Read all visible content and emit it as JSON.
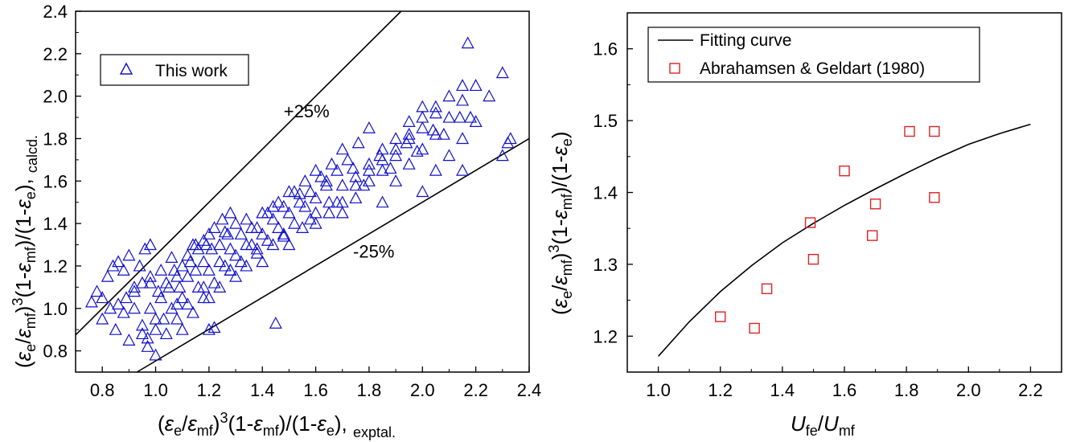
{
  "chart_data": [
    {
      "type": "scatter",
      "xlim": [
        0.7,
        2.4
      ],
      "ylim": [
        0.7,
        2.4
      ],
      "xticks": [
        "0.8",
        "1.0",
        "1.2",
        "1.4",
        "1.6",
        "1.8",
        "2.0",
        "2.2",
        "2.4"
      ],
      "yticks": [
        "0.8",
        "1.0",
        "1.2",
        "1.4",
        "1.6",
        "1.8",
        "2.0",
        "2.2",
        "2.4"
      ],
      "xlabel": {
        "p1": "(",
        "e": "ε",
        "sub_e": "e",
        "slash": "/",
        "mf": "ε",
        "sub_mf": "mf",
        "p2": ")",
        "sup3": "3",
        "rest": "(1-",
        "e2": "ε",
        "sub_mf2": "mf",
        "mid": ")/(1-",
        "e3": "ε",
        "sub_e3": "e",
        "tail": "), ",
        "sub_tail": "exptal."
      },
      "ylabel": {
        "p1": "(",
        "e": "ε",
        "sub_e": "e",
        "slash": "/",
        "mf": "ε",
        "sub_mf": "mf",
        "p2": ")",
        "sup3": "3",
        "rest": "(1-",
        "e2": "ε",
        "sub_mf2": "mf",
        "mid": ")/(1-",
        "e3": "ε",
        "sub_e3": "e",
        "tail": "), ",
        "sub_tail": "calcd."
      },
      "legend": {
        "label": "This work",
        "placement": "top-left"
      },
      "annotations": [
        {
          "text": "+25%",
          "x": 1.48,
          "y": 1.9
        },
        {
          "text": "-25%",
          "x": 1.74,
          "y": 1.24
        }
      ],
      "lines": [
        {
          "name": "+25%",
          "x": [
            0.7,
            1.92
          ],
          "y": [
            0.875,
            2.4
          ]
        },
        {
          "name": "-25%",
          "x": [
            0.93,
            2.4
          ],
          "y": [
            0.7,
            1.8
          ]
        }
      ],
      "series": [
        {
          "marker": "open-triangle",
          "color": "#1010cc",
          "x": [
            0.76,
            0.78,
            0.8,
            0.82,
            0.84,
            0.86,
            0.88,
            0.9,
            0.92,
            0.94,
            0.96,
            0.98,
            0.8,
            0.83,
            0.86,
            0.89,
            0.92,
            0.95,
            0.98,
            0.85,
            0.9,
            0.95,
            0.88,
            0.92,
            0.97,
            1.0,
            1.02,
            1.05,
            1.08,
            1.1,
            1.12,
            1.15,
            1.18,
            1.2,
            0.95,
            0.98,
            1.01,
            1.04,
            1.07,
            1.1,
            1.13,
            1.16,
            1.19,
            1.22,
            1.25,
            1.28,
            0.97,
            1.0,
            1.03,
            1.06,
            1.09,
            1.12,
            1.15,
            1.18,
            1.21,
            1.24,
            1.27,
            1.3,
            1.0,
            1.04,
            1.08,
            1.12,
            1.16,
            1.2,
            1.24,
            1.28,
            1.32,
            1.36,
            1.4,
            1.1,
            1.14,
            1.18,
            1.22,
            1.26,
            1.3,
            1.34,
            1.38,
            1.42,
            1.46,
            1.5,
            1.2,
            1.24,
            1.28,
            1.32,
            1.36,
            1.4,
            1.44,
            1.48,
            1.52,
            1.56,
            1.6,
            1.3,
            1.34,
            1.38,
            1.42,
            1.46,
            1.5,
            1.54,
            1.58,
            1.62,
            1.66,
            1.7,
            1.4,
            1.44,
            1.48,
            1.52,
            1.56,
            1.6,
            1.64,
            1.68,
            1.72,
            1.76,
            1.8,
            1.5,
            1.55,
            1.6,
            1.65,
            1.7,
            1.75,
            1.8,
            1.85,
            1.9,
            1.95,
            2.0,
            1.6,
            1.65,
            1.7,
            1.75,
            1.8,
            1.85,
            1.9,
            1.95,
            2.0,
            2.05,
            1.7,
            1.75,
            1.8,
            1.85,
            1.9,
            1.95,
            2.0,
            2.05,
            2.1,
            2.15,
            1.85,
            1.9,
            1.95,
            2.0,
            2.05,
            2.1,
            2.15,
            2.2,
            2.25,
            2.0,
            2.05,
            2.1,
            2.15,
            2.2,
            2.3,
            2.32,
            2.33,
            2.3,
            2.17,
            2.15,
            1.2,
            1.22,
            1.45,
            0.98,
            1.02,
            1.06,
            1.14,
            1.26,
            1.34,
            1.44,
            1.54,
            1.64,
            1.74,
            1.84,
            1.94,
            2.04,
            2.14,
            1.08,
            1.18,
            1.28,
            1.38,
            1.48,
            1.58,
            1.68,
            1.78,
            1.88,
            1.98,
            2.08,
            2.18
          ],
          "y": [
            1.03,
            1.08,
            1.05,
            1.15,
            1.2,
            1.22,
            1.18,
            1.25,
            1.1,
            1.2,
            1.28,
            1.3,
            0.95,
            1.0,
            1.02,
            1.05,
            1.08,
            1.12,
            1.15,
            0.9,
            0.85,
            0.88,
            0.98,
            1.0,
            0.82,
            0.95,
            1.05,
            1.1,
            1.15,
            1.2,
            1.25,
            1.3,
            1.32,
            1.35,
            0.92,
            1.0,
            1.08,
            1.12,
            1.18,
            1.05,
            1.22,
            1.28,
            1.3,
            1.38,
            1.42,
            1.45,
            0.86,
            0.9,
            0.95,
            1.0,
            1.1,
            1.15,
            1.18,
            1.22,
            1.28,
            1.3,
            1.35,
            1.4,
            0.78,
            0.88,
            0.95,
            1.02,
            1.1,
            1.18,
            1.22,
            1.28,
            1.35,
            1.38,
            1.45,
            0.9,
            0.98,
            1.05,
            1.12,
            1.2,
            1.25,
            1.3,
            1.38,
            1.45,
            1.5,
            1.55,
            1.05,
            1.1,
            1.18,
            1.22,
            1.3,
            1.35,
            1.42,
            1.48,
            1.55,
            1.6,
            1.65,
            1.15,
            1.2,
            1.28,
            1.32,
            1.38,
            1.45,
            1.5,
            1.55,
            1.62,
            1.68,
            1.75,
            1.22,
            1.3,
            1.35,
            1.4,
            1.48,
            1.52,
            1.58,
            1.65,
            1.7,
            1.78,
            1.85,
            1.3,
            1.38,
            1.45,
            1.5,
            1.58,
            1.62,
            1.68,
            1.75,
            1.8,
            1.88,
            1.95,
            1.4,
            1.45,
            1.5,
            1.58,
            1.65,
            1.7,
            1.75,
            1.82,
            1.9,
            1.95,
            1.45,
            1.52,
            1.6,
            1.65,
            1.72,
            1.8,
            1.85,
            1.92,
            2.0,
            2.05,
            1.5,
            1.6,
            1.68,
            1.75,
            1.82,
            1.9,
            1.98,
            2.05,
            2.0,
            1.55,
            1.65,
            1.72,
            1.8,
            1.88,
            1.72,
            1.78,
            1.8,
            2.11,
            2.25,
            1.65,
            0.9,
            0.91,
            0.93,
            1.12,
            1.18,
            1.24,
            1.3,
            1.36,
            1.42,
            1.48,
            1.54,
            1.6,
            1.66,
            1.72,
            1.78,
            1.84,
            1.9,
            1.02,
            1.1,
            1.18,
            1.26,
            1.34,
            1.42,
            1.5,
            1.58,
            1.66,
            1.74,
            1.82,
            1.9
          ]
        }
      ]
    },
    {
      "type": "scatter",
      "xlim": [
        0.9,
        2.3
      ],
      "ylim": [
        1.15,
        1.65
      ],
      "xticks": [
        "1.0",
        "1.2",
        "1.4",
        "1.6",
        "1.8",
        "2.0",
        "2.2"
      ],
      "yticks": [
        "1.2",
        "1.3",
        "1.4",
        "1.5",
        "1.6"
      ],
      "xlabel": {
        "u": "U",
        "sub_fe": "fe",
        "slash": "/",
        "u2": "U",
        "sub_mf": "mf"
      },
      "ylabel": {
        "p1": "(",
        "e": "ε",
        "sub_e": "e",
        "slash": "/",
        "mf": "ε",
        "sub_mf": "mf",
        "p2": ")",
        "sup3": "3",
        "rest": "(1-",
        "e2": "ε",
        "sub_mf2": "mf",
        "mid": ")/(1-",
        "e3": "ε",
        "sub_e3": "e",
        "tail": ")"
      },
      "legend": {
        "placement": "top-left",
        "entries": [
          "Fitting curve",
          "Abrahamsen & Geldart (1980)"
        ]
      },
      "series": [
        {
          "name": "Fitting curve",
          "kind": "line",
          "color": "#000000",
          "x": [
            1.0,
            1.1,
            1.2,
            1.3,
            1.4,
            1.5,
            1.6,
            1.7,
            1.8,
            1.9,
            2.0,
            2.1,
            2.2
          ],
          "y": [
            1.172,
            1.22,
            1.262,
            1.298,
            1.33,
            1.357,
            1.382,
            1.405,
            1.427,
            1.448,
            1.467,
            1.482,
            1.495
          ]
        },
        {
          "name": "Abrahamsen & Geldart (1980)",
          "kind": "marker",
          "marker": "open-square",
          "color": "#dd2222",
          "x": [
            1.2,
            1.31,
            1.35,
            1.49,
            1.5,
            1.6,
            1.69,
            1.7,
            1.81,
            1.89,
            1.89
          ],
          "y": [
            1.227,
            1.211,
            1.266,
            1.358,
            1.307,
            1.43,
            1.34,
            1.384,
            1.485,
            1.485,
            1.393
          ]
        }
      ]
    }
  ]
}
